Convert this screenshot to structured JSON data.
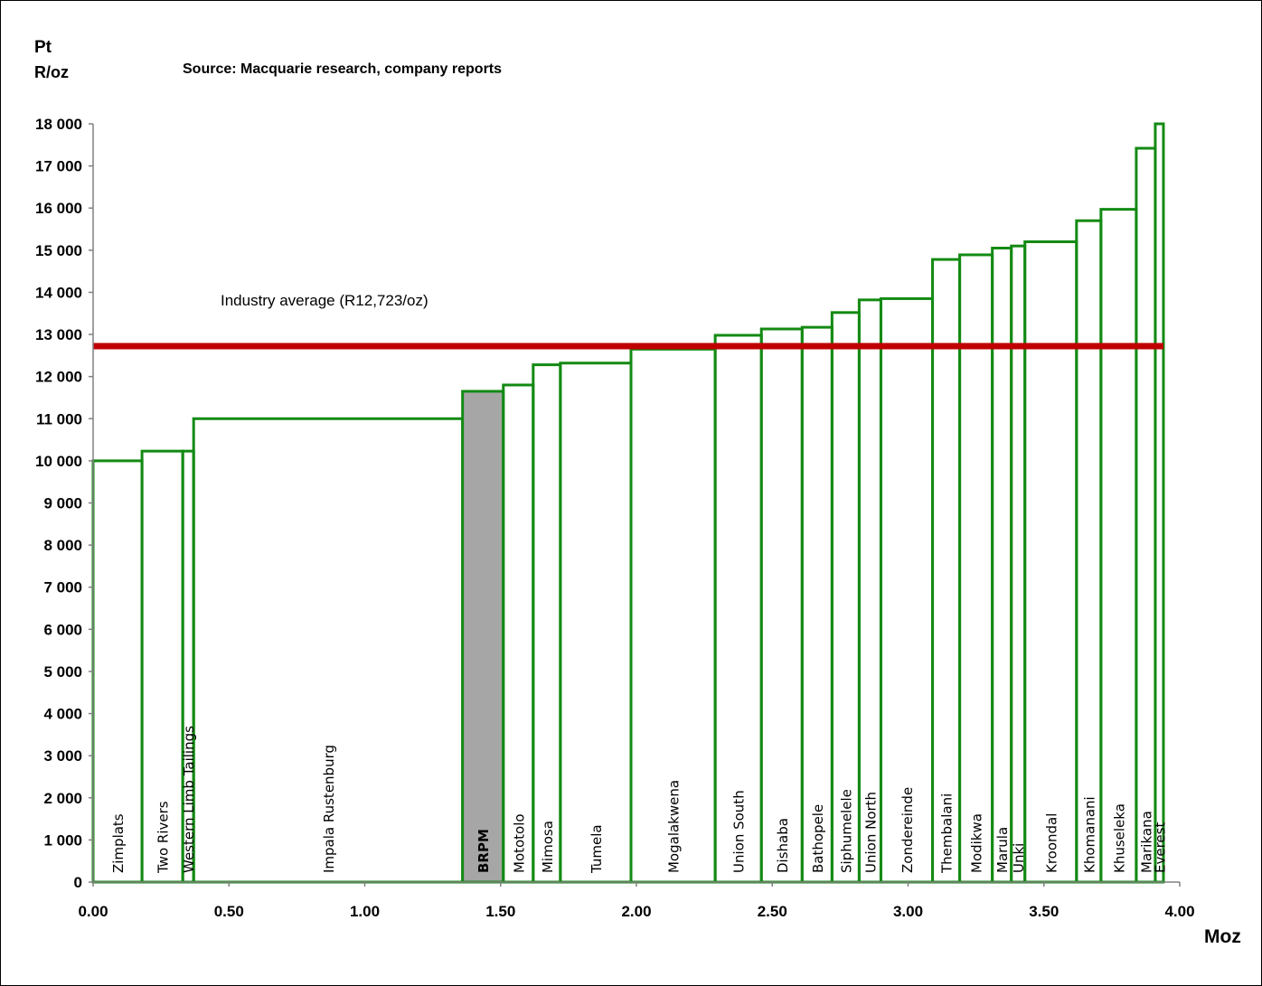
{
  "chart_data": {
    "type": "step",
    "title": "",
    "source": "Source: Macquarie research, company reports",
    "ylabel_line1": "Pt",
    "ylabel_line2": "R/oz",
    "xlabel": "Moz",
    "xlim": [
      0,
      4
    ],
    "ylim": [
      0,
      18000
    ],
    "grid": false,
    "x_ticks": [
      "0.00",
      "0.50",
      "1.00",
      "1.50",
      "2.00",
      "2.50",
      "3.00",
      "3.50",
      "4.00"
    ],
    "y_ticks": [
      "0",
      "1 000",
      "2 000",
      "3 000",
      "4 000",
      "5 000",
      "6 000",
      "7 000",
      "8 000",
      "9 000",
      "10 000",
      "11 000",
      "12 000",
      "13 000",
      "14 000",
      "15 000",
      "16 000",
      "17 000",
      "18 000"
    ],
    "reference_line": {
      "label": "Industry average (R12,723/oz)",
      "value": 12723,
      "color": "#c00000"
    },
    "bar_color": "#138a13",
    "highlight_fill": "#a6a6a6",
    "series": [
      {
        "name": "Zimplats",
        "x0": 0.0,
        "x1": 0.18,
        "value": 10000
      },
      {
        "name": "Two  Rivers",
        "x0": 0.18,
        "x1": 0.33,
        "value": 10230
      },
      {
        "name": "Western Limb Tailings",
        "x0": 0.33,
        "x1": 0.37,
        "value": 10230
      },
      {
        "name": "Impala  Rustenburg",
        "x0": 0.37,
        "x1": 1.36,
        "value": 11000
      },
      {
        "name": "BRPM",
        "x0": 1.36,
        "x1": 1.51,
        "value": 11650,
        "highlight": true
      },
      {
        "name": "Mototolo",
        "x0": 1.51,
        "x1": 1.62,
        "value": 11800
      },
      {
        "name": "Mimosa",
        "x0": 1.62,
        "x1": 1.72,
        "value": 12280
      },
      {
        "name": "Tumela",
        "x0": 1.72,
        "x1": 1.98,
        "value": 12320
      },
      {
        "name": "Mogalakwena",
        "x0": 1.98,
        "x1": 2.29,
        "value": 12650
      },
      {
        "name": "Union  South",
        "x0": 2.29,
        "x1": 2.46,
        "value": 12980
      },
      {
        "name": "Dishaba",
        "x0": 2.46,
        "x1": 2.61,
        "value": 13130
      },
      {
        "name": "Bathopele",
        "x0": 2.61,
        "x1": 2.72,
        "value": 13170
      },
      {
        "name": "Siphumelele",
        "x0": 2.72,
        "x1": 2.82,
        "value": 13520
      },
      {
        "name": "Union  North",
        "x0": 2.82,
        "x1": 2.9,
        "value": 13820
      },
      {
        "name": "Zondereinde",
        "x0": 2.9,
        "x1": 3.09,
        "value": 13850
      },
      {
        "name": "Thembalani",
        "x0": 3.09,
        "x1": 3.19,
        "value": 14780
      },
      {
        "name": "Modikwa",
        "x0": 3.19,
        "x1": 3.31,
        "value": 14890
      },
      {
        "name": "Marula",
        "x0": 3.31,
        "x1": 3.38,
        "value": 15050
      },
      {
        "name": "Unki",
        "x0": 3.38,
        "x1": 3.43,
        "value": 15100
      },
      {
        "name": "Kroondal",
        "x0": 3.43,
        "x1": 3.62,
        "value": 15200
      },
      {
        "name": "Khomanani",
        "x0": 3.62,
        "x1": 3.71,
        "value": 15700
      },
      {
        "name": "Khuseleka",
        "x0": 3.71,
        "x1": 3.84,
        "value": 15970
      },
      {
        "name": "Marikana",
        "x0": 3.84,
        "x1": 3.91,
        "value": 17420
      },
      {
        "name": "Everest",
        "x0": 3.91,
        "x1": 3.94,
        "value": 18000
      }
    ]
  }
}
